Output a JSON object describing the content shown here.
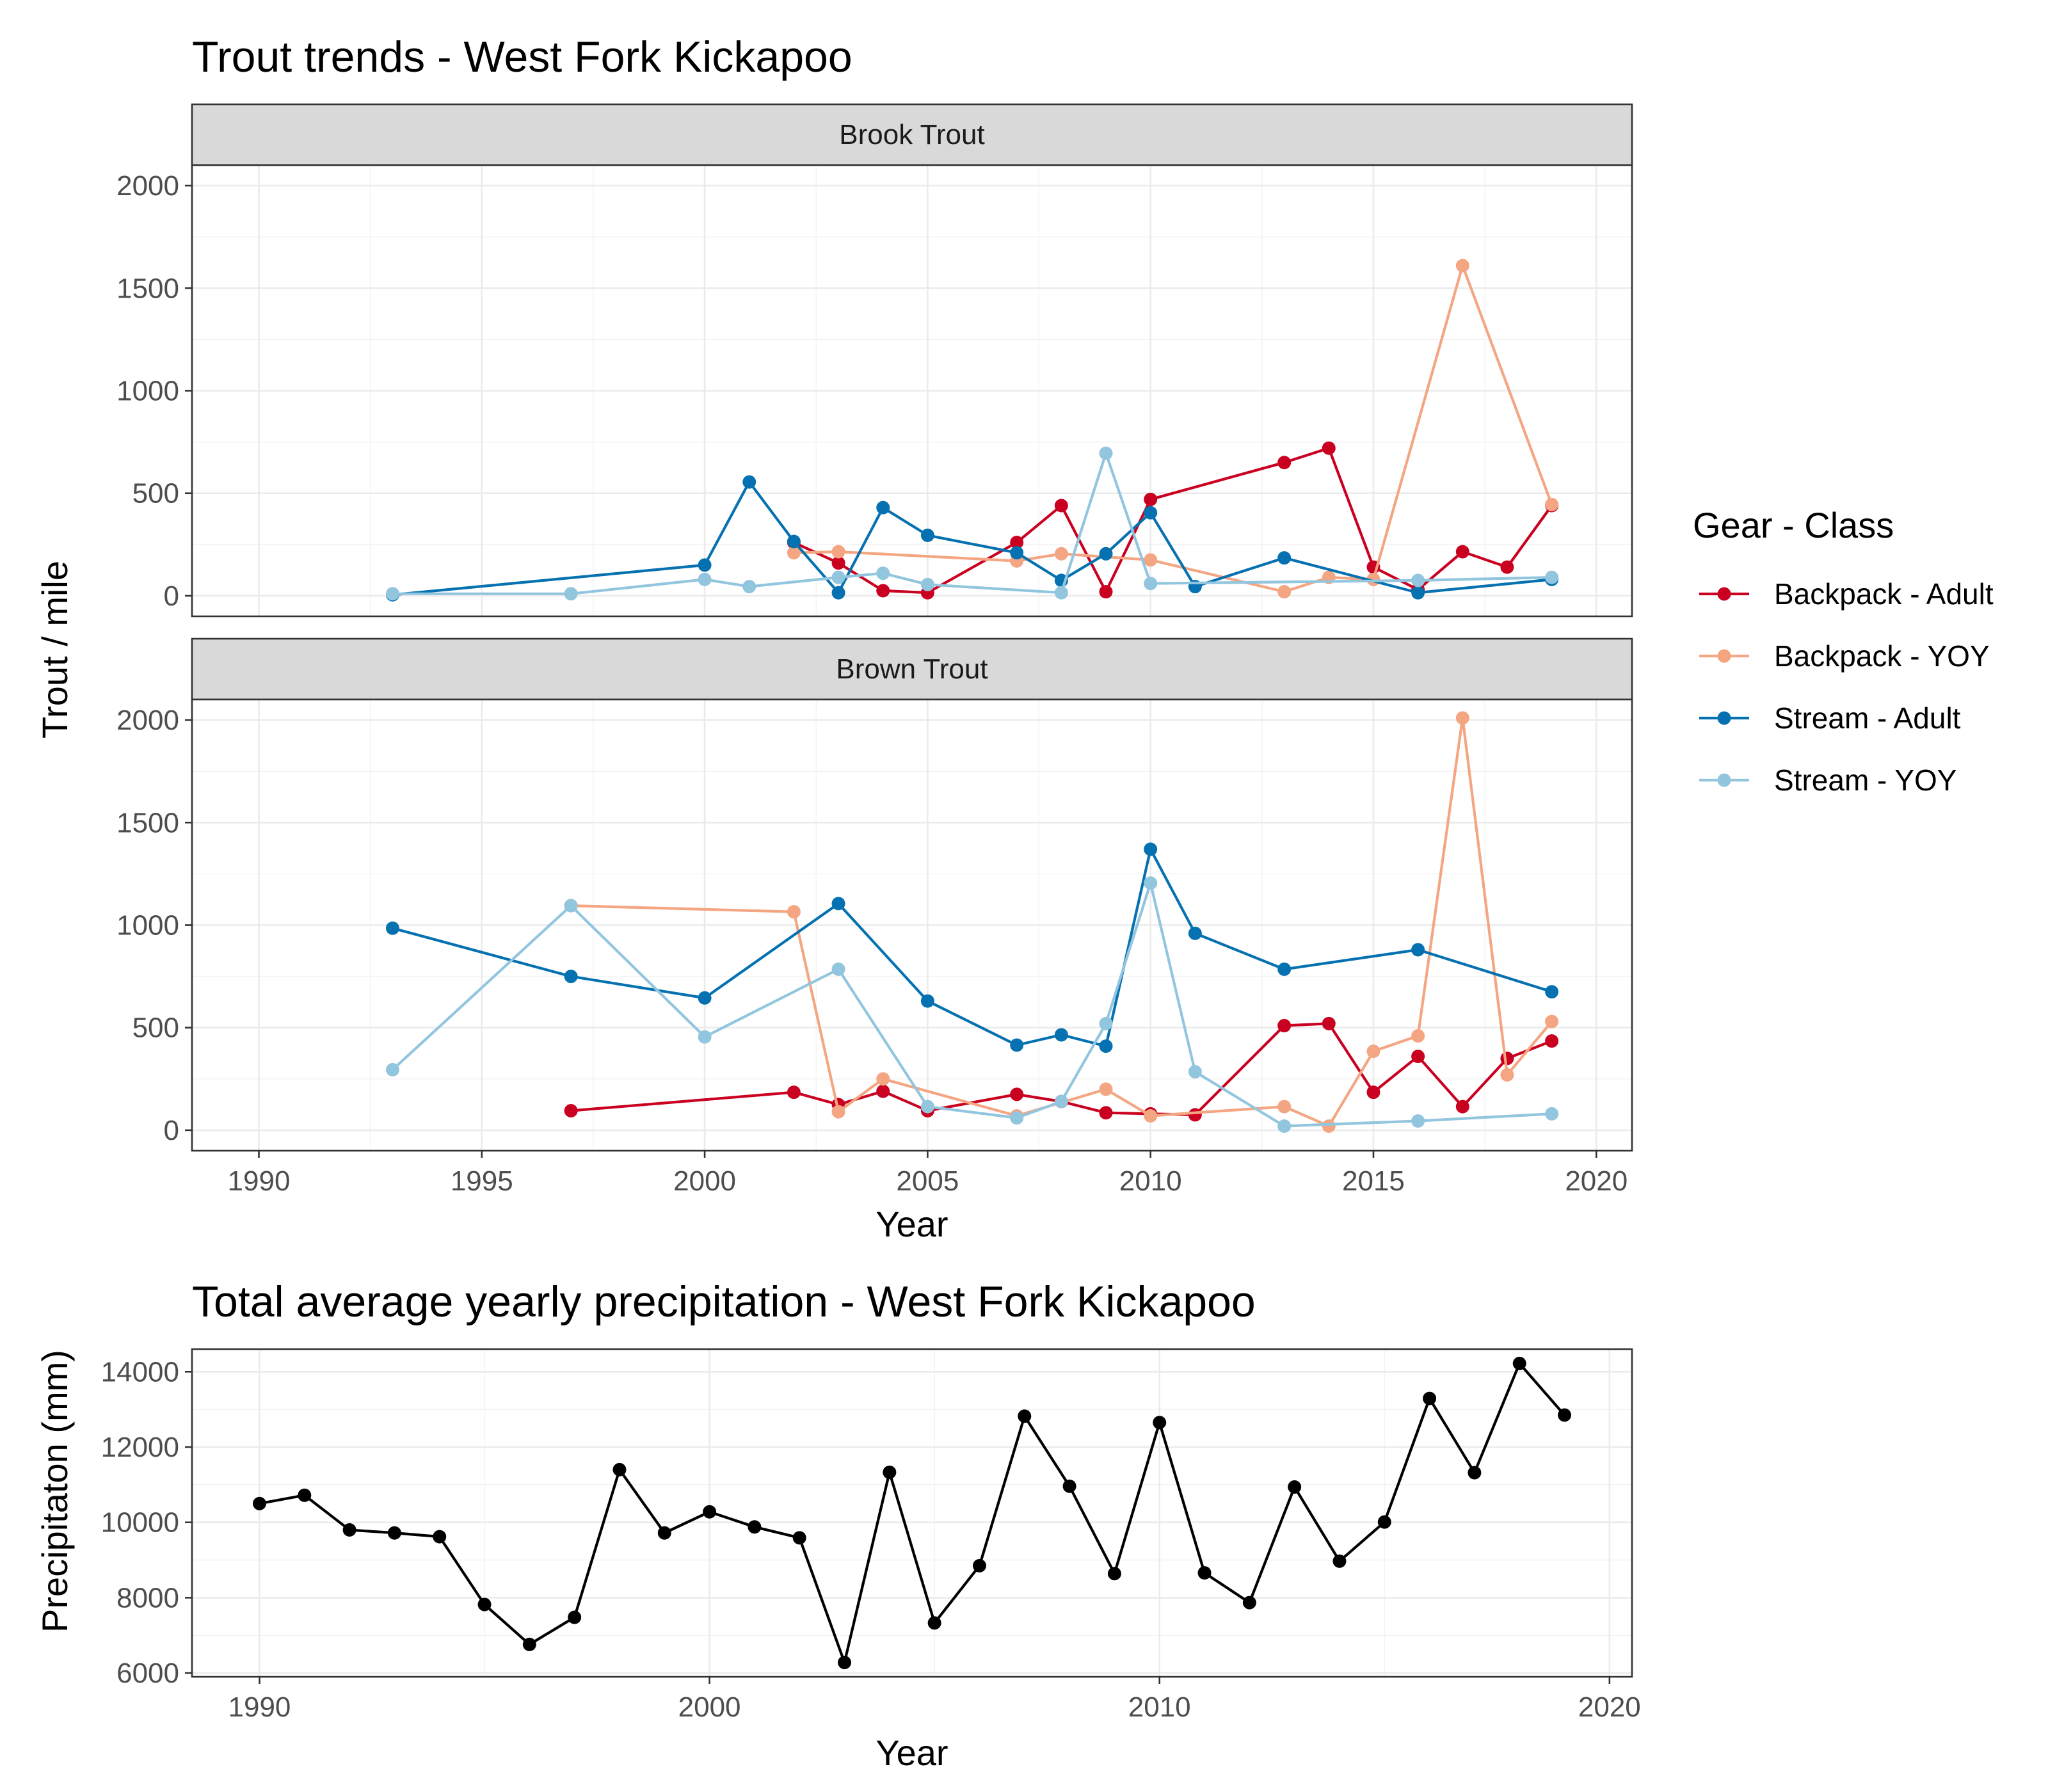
{
  "chart_data": [
    {
      "type": "line",
      "title": "Trout trends - West Fork Kickapoo",
      "xlabel": "Year",
      "ylabel": "Trout / mile",
      "xlim": [
        1988.5,
        2020.8
      ],
      "ylim": [
        -100,
        2100
      ],
      "x_ticks": [
        1990,
        1995,
        2000,
        2005,
        2010,
        2015,
        2020
      ],
      "y_ticks": [
        0,
        500,
        1000,
        1500,
        2000
      ],
      "grid": true,
      "legend": {
        "title": "Gear - Class",
        "position": "right",
        "entries": [
          "Backpack - Adult",
          "Backpack - YOY",
          "Stream - Adult",
          "Stream - YOY"
        ]
      },
      "colors": {
        "Backpack - Adult": "#ca0020",
        "Backpack - YOY": "#f4a582",
        "Stream - Adult": "#0571b0",
        "Stream - YOY": "#92c5de"
      },
      "facets": [
        {
          "label": "Brook Trout",
          "series": [
            {
              "name": "Backpack - Adult",
              "points": [
                [
                  2002,
                  260
                ],
                [
                  2003,
                  160
                ],
                [
                  2004,
                  25
                ],
                [
                  2005,
                  15
                ],
                [
                  2007,
                  260
                ],
                [
                  2008,
                  440
                ],
                [
                  2009,
                  20
                ],
                [
                  2010,
                  470
                ],
                [
                  2013,
                  650
                ],
                [
                  2014,
                  720
                ],
                [
                  2015,
                  140
                ],
                [
                  2016,
                  30
                ],
                [
                  2017,
                  215
                ],
                [
                  2018,
                  140
                ],
                [
                  2019,
                  440
                ]
              ]
            },
            {
              "name": "Backpack - YOY",
              "points": [
                [
                  2002,
                  210
                ],
                [
                  2003,
                  215
                ],
                [
                  2007,
                  170
                ],
                [
                  2008,
                  205
                ],
                [
                  2010,
                  175
                ],
                [
                  2013,
                  20
                ],
                [
                  2014,
                  90
                ],
                [
                  2015,
                  80
                ],
                [
                  2017,
                  1610
                ],
                [
                  2019,
                  445
                ]
              ]
            },
            {
              "name": "Stream - Adult",
              "points": [
                [
                  1993,
                  5
                ],
                [
                  2000,
                  150
                ],
                [
                  2001,
                  555
                ],
                [
                  2002,
                  265
                ],
                [
                  2003,
                  15
                ],
                [
                  2004,
                  430
                ],
                [
                  2005,
                  295
                ],
                [
                  2007,
                  210
                ],
                [
                  2008,
                  75
                ],
                [
                  2009,
                  205
                ],
                [
                  2010,
                  405
                ],
                [
                  2011,
                  45
                ],
                [
                  2013,
                  185
                ],
                [
                  2016,
                  15
                ],
                [
                  2019,
                  80
                ]
              ]
            },
            {
              "name": "Stream - YOY",
              "points": [
                [
                  1993,
                  10
                ],
                [
                  1997,
                  10
                ],
                [
                  2000,
                  80
                ],
                [
                  2001,
                  45
                ],
                [
                  2003,
                  90
                ],
                [
                  2004,
                  110
                ],
                [
                  2005,
                  55
                ],
                [
                  2008,
                  15
                ],
                [
                  2009,
                  695
                ],
                [
                  2010,
                  60
                ],
                [
                  2016,
                  75
                ],
                [
                  2019,
                  90
                ]
              ]
            }
          ]
        },
        {
          "label": "Brown Trout",
          "series": [
            {
              "name": "Backpack - Adult",
              "points": [
                [
                  1997,
                  95
                ],
                [
                  2002,
                  185
                ],
                [
                  2003,
                  125
                ],
                [
                  2004,
                  190
                ],
                [
                  2005,
                  95
                ],
                [
                  2007,
                  175
                ],
                [
                  2008,
                  140
                ],
                [
                  2009,
                  85
                ],
                [
                  2010,
                  80
                ],
                [
                  2011,
                  75
                ],
                [
                  2013,
                  510
                ],
                [
                  2014,
                  520
                ],
                [
                  2015,
                  185
                ],
                [
                  2016,
                  360
                ],
                [
                  2017,
                  115
                ],
                [
                  2018,
                  350
                ],
                [
                  2019,
                  435
                ]
              ]
            },
            {
              "name": "Backpack - YOY",
              "points": [
                [
                  1997,
                  1095
                ],
                [
                  2002,
                  1065
                ],
                [
                  2003,
                  90
                ],
                [
                  2004,
                  250
                ],
                [
                  2007,
                  70
                ],
                [
                  2009,
                  200
                ],
                [
                  2010,
                  70
                ],
                [
                  2013,
                  115
                ],
                [
                  2014,
                  20
                ],
                [
                  2015,
                  385
                ],
                [
                  2016,
                  460
                ],
                [
                  2017,
                  2010
                ],
                [
                  2018,
                  270
                ],
                [
                  2019,
                  530
                ]
              ]
            },
            {
              "name": "Stream - Adult",
              "points": [
                [
                  1993,
                  985
                ],
                [
                  1997,
                  750
                ],
                [
                  2000,
                  645
                ],
                [
                  2003,
                  1105
                ],
                [
                  2005,
                  630
                ],
                [
                  2007,
                  415
                ],
                [
                  2008,
                  465
                ],
                [
                  2009,
                  410
                ],
                [
                  2010,
                  1370
                ],
                [
                  2011,
                  960
                ],
                [
                  2013,
                  785
                ],
                [
                  2016,
                  880
                ],
                [
                  2019,
                  675
                ]
              ]
            },
            {
              "name": "Stream - YOY",
              "points": [
                [
                  1993,
                  295
                ],
                [
                  1997,
                  1095
                ],
                [
                  2000,
                  455
                ],
                [
                  2003,
                  785
                ],
                [
                  2005,
                  115
                ],
                [
                  2007,
                  60
                ],
                [
                  2008,
                  140
                ],
                [
                  2009,
                  520
                ],
                [
                  2010,
                  1205
                ],
                [
                  2011,
                  285
                ],
                [
                  2013,
                  20
                ],
                [
                  2016,
                  45
                ],
                [
                  2019,
                  80
                ]
              ]
            }
          ]
        }
      ]
    },
    {
      "type": "line",
      "title": "Total average yearly precipitation - West Fork Kickapoo",
      "xlabel": "Year",
      "ylabel": "Precipitaton (mm)",
      "xlim": [
        1988.5,
        2020.5
      ],
      "ylim": [
        5900,
        14600
      ],
      "x_ticks": [
        1990,
        2000,
        2010,
        2020
      ],
      "y_ticks": [
        6000,
        8000,
        10000,
        12000,
        14000
      ],
      "grid": true,
      "color": "#000000",
      "series": [
        {
          "x": [
            1990,
            1991,
            1992,
            1993,
            1994,
            1995,
            1996,
            1997,
            1998,
            1999,
            2000,
            2001,
            2002,
            2003,
            2004,
            2005,
            2006,
            2007,
            2008,
            2009,
            2010,
            2011,
            2012,
            2013,
            2014,
            2015,
            2016,
            2017,
            2018,
            2019
          ],
          "values": [
            10500,
            10720,
            9800,
            9720,
            9620,
            7820,
            6760,
            7480,
            11400,
            9720,
            10280,
            9880,
            9590,
            6280,
            11330,
            7330,
            8850,
            12820,
            10960,
            8640,
            12650,
            8660,
            7870,
            10940,
            8970,
            10010,
            13290,
            11320,
            14220,
            12850
          ]
        }
      ]
    }
  ]
}
